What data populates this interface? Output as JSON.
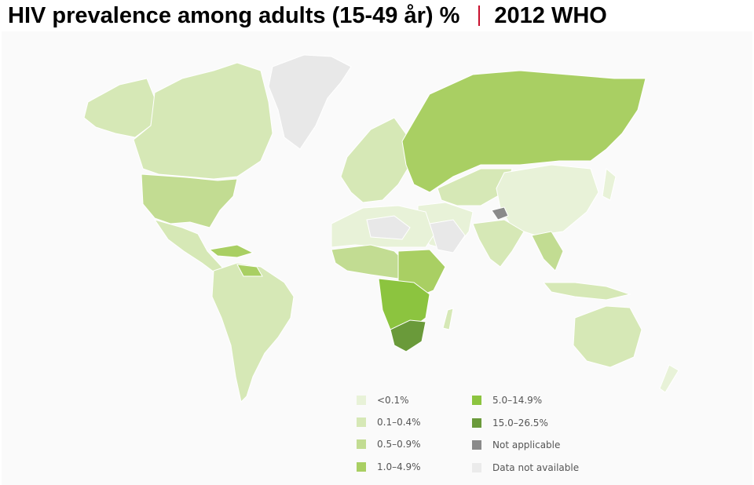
{
  "header": {
    "title": "HIV prevalence among adults (15-49 år) %",
    "year_source": "2012 WHO",
    "separator_color": "#c8102e"
  },
  "legend": {
    "items": [
      {
        "label": "<0.1%",
        "color": "#e8f2d8"
      },
      {
        "label": "0.1–0.4%",
        "color": "#d6e8b6"
      },
      {
        "label": "0.5–0.9%",
        "color": "#c2dc92"
      },
      {
        "label": "1.0–4.9%",
        "color": "#a9cf63"
      },
      {
        "label": "5.0–14.9%",
        "color": "#8cc43f"
      },
      {
        "label": "15.0–26.5%",
        "color": "#6a9a3a"
      },
      {
        "label": "Not applicable",
        "color": "#8a8a8a"
      },
      {
        "label": "Data not available",
        "color": "#ebebeb"
      }
    ]
  },
  "map": {
    "ocean_color": "#fafafa",
    "border_color": "#ffffff"
  }
}
